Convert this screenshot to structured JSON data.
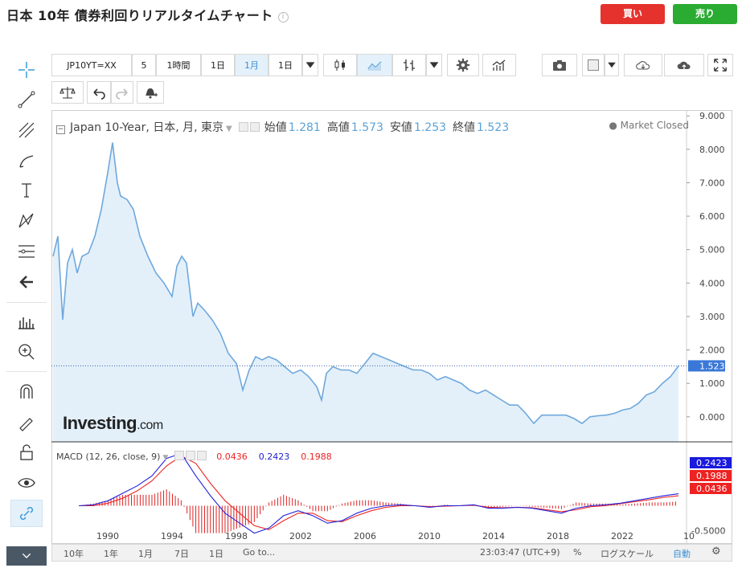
{
  "header": {
    "title": "日本 10年 債券利回りリアルタイムチャート",
    "buy_label": "買い",
    "sell_label": "売り",
    "info_icon": "i"
  },
  "toolbar": {
    "symbol": "JP10YT=XX",
    "interval_5": "5",
    "interval_1h": "1時間",
    "interval_1d": "1日",
    "interval_1m": "1月",
    "interval_dd": "1日"
  },
  "legend": {
    "name": "Japan 10-Year, 日本, 月, 東京",
    "open_label": "始値",
    "open": "1.281",
    "high_label": "高値",
    "high": "1.573",
    "low_label": "安値",
    "low": "1.253",
    "close_label": "終値",
    "close": "1.523",
    "status": "● Market Closed"
  },
  "macd_legend": {
    "name": "MACD (12, 26, close, 9)",
    "v1": "0.0436",
    "v2": "0.2423",
    "v3": "0.1988"
  },
  "logo": {
    "main": "Investing",
    "suffix": ".com"
  },
  "bottom": {
    "r10y": "10年",
    "r1y": "1年",
    "r1m": "1月",
    "r7d": "7日",
    "r1d": "1日",
    "goto": "Go to...",
    "time": "23:03:47 (UTC+9)",
    "pct": "%",
    "log": "ログスケール",
    "auto": "自動"
  },
  "colors": {
    "line": "#6fa8dc",
    "fill": "#e3f0fa",
    "macd": "#2222dd",
    "signal": "#ee2222",
    "hist": "#dd2222",
    "buy": "#e5322d",
    "sell": "#2aab31",
    "tag_blue": "#3a78d8",
    "tag_red": "#ee2222"
  },
  "chart_data": {
    "type": "area",
    "title": "Japan 10-Year, 日本, 月, 東京",
    "y_ticks": [
      "9.000",
      "8.000",
      "7.000",
      "6.000",
      "5.000",
      "4.000",
      "3.000",
      "2.000",
      "1.000",
      "0.000"
    ],
    "x_ticks": [
      "1990",
      "1994",
      "1998",
      "2002",
      "2006",
      "2010",
      "2014",
      "2018",
      "2022"
    ],
    "ylim": [
      -0.75,
      9.15
    ],
    "xlim": [
      1986.5,
      2026.0
    ],
    "last_value": "1.523",
    "x": [
      1986.6,
      1986.9,
      1987.2,
      1987.5,
      1987.8,
      1988.1,
      1988.4,
      1988.8,
      1989.2,
      1989.6,
      1990.0,
      1990.3,
      1990.6,
      1990.8,
      1991.2,
      1991.6,
      1992.0,
      1992.5,
      1993.0,
      1993.5,
      1994.0,
      1994.3,
      1994.6,
      1994.9,
      1995.3,
      1995.6,
      1996.0,
      1996.5,
      1997.0,
      1997.5,
      1998.0,
      1998.4,
      1998.8,
      1999.2,
      1999.6,
      2000.0,
      2000.5,
      2001.0,
      2001.5,
      2002.0,
      2002.5,
      2003.0,
      2003.3,
      2003.6,
      2004.0,
      2004.5,
      2005.0,
      2005.5,
      2006.0,
      2006.5,
      2007.0,
      2007.5,
      2008.0,
      2008.5,
      2009.0,
      2009.5,
      2010.0,
      2010.5,
      2011.0,
      2011.5,
      2012.0,
      2012.5,
      2013.0,
      2013.5,
      2014.0,
      2014.5,
      2015.0,
      2015.5,
      2016.0,
      2016.5,
      2017.0,
      2017.5,
      2018.0,
      2018.5,
      2019.0,
      2019.5,
      2020.0,
      2020.5,
      2021.0,
      2021.5,
      2022.0,
      2022.5,
      2023.0,
      2023.5,
      2024.0,
      2024.5,
      2025.0,
      2025.5
    ],
    "y": [
      4.8,
      5.4,
      2.9,
      4.6,
      5.0,
      4.3,
      4.8,
      4.9,
      5.4,
      6.2,
      7.3,
      8.2,
      7.0,
      6.6,
      6.5,
      6.2,
      5.4,
      4.8,
      4.3,
      4.0,
      3.6,
      4.5,
      4.8,
      4.6,
      3.0,
      3.4,
      3.2,
      2.9,
      2.5,
      1.9,
      1.6,
      0.8,
      1.4,
      1.8,
      1.7,
      1.8,
      1.7,
      1.5,
      1.3,
      1.4,
      1.2,
      0.9,
      0.5,
      1.3,
      1.5,
      1.4,
      1.4,
      1.3,
      1.6,
      1.9,
      1.8,
      1.7,
      1.6,
      1.5,
      1.4,
      1.4,
      1.3,
      1.1,
      1.2,
      1.1,
      1.0,
      0.8,
      0.7,
      0.8,
      0.65,
      0.5,
      0.35,
      0.35,
      0.1,
      -0.2,
      0.05,
      0.05,
      0.05,
      0.05,
      -0.05,
      -0.2,
      0.0,
      0.03,
      0.05,
      0.1,
      0.2,
      0.25,
      0.4,
      0.65,
      0.75,
      1.0,
      1.2,
      1.52
    ],
    "macd_ylim": [
      -0.75,
      1.25
    ],
    "macd_ticks": [
      "-0.5000"
    ],
    "macd": [
      0.0,
      0.02,
      0.1,
      0.25,
      0.4,
      0.6,
      0.95,
      1.05,
      0.6,
      0.2,
      -0.15,
      -0.35,
      -0.55,
      -0.45,
      -0.2,
      -0.1,
      -0.2,
      -0.35,
      -0.3,
      -0.15,
      -0.05,
      0.0,
      0.02,
      0.0,
      -0.03,
      0.0,
      0.0,
      0.02,
      -0.05,
      -0.05,
      -0.03,
      -0.05,
      -0.1,
      -0.15,
      -0.05,
      0.0,
      0.02,
      0.05,
      0.1,
      0.15,
      0.2,
      0.24
    ],
    "signal": [
      0.0,
      0.0,
      0.05,
      0.15,
      0.3,
      0.5,
      0.8,
      1.0,
      0.85,
      0.45,
      0.1,
      -0.15,
      -0.4,
      -0.48,
      -0.3,
      -0.15,
      -0.15,
      -0.3,
      -0.32,
      -0.2,
      -0.1,
      -0.03,
      0.0,
      0.0,
      -0.02,
      -0.01,
      0.0,
      0.01,
      -0.03,
      -0.04,
      -0.03,
      -0.04,
      -0.08,
      -0.12,
      -0.08,
      -0.02,
      0.0,
      0.04,
      0.08,
      0.12,
      0.17,
      0.2
    ]
  }
}
